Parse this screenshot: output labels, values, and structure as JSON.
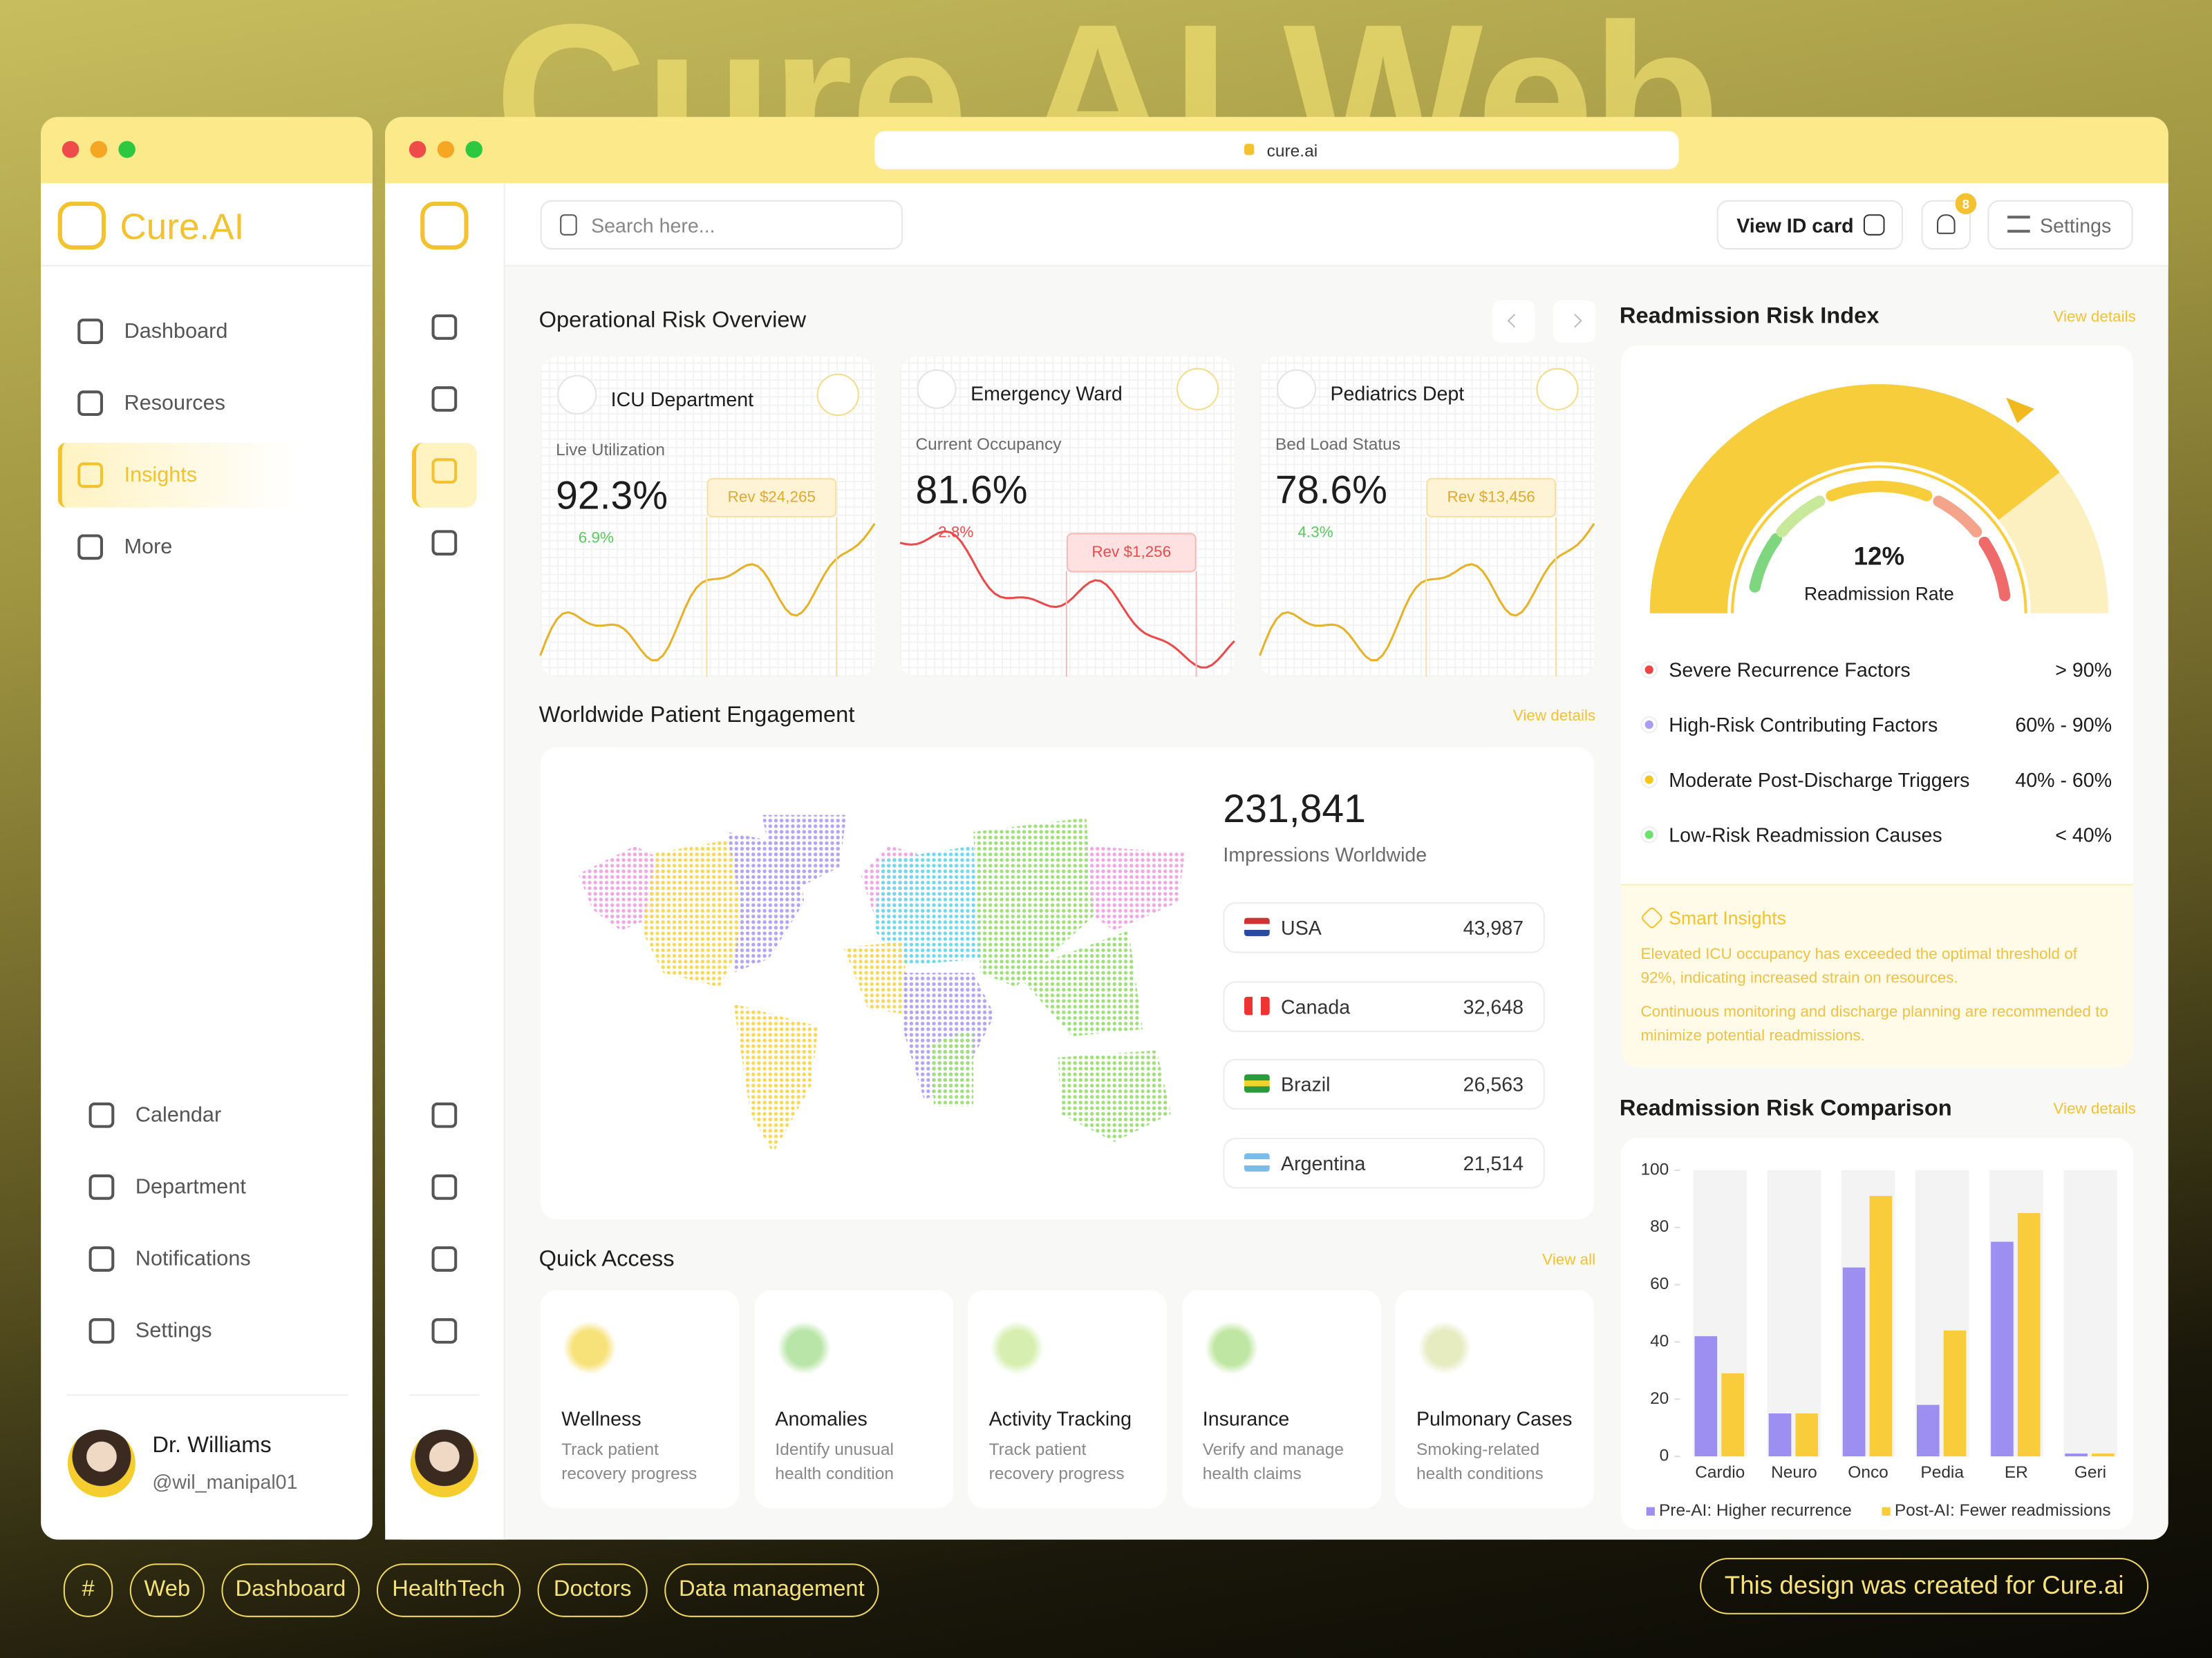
{
  "background_title": "Cure.AI Web",
  "sidebar": {
    "brand": "Cure.AI",
    "nav": [
      "Dashboard",
      "Resources",
      "Insights",
      "More"
    ],
    "active": 2,
    "bottom_nav": [
      "Calendar",
      "Department",
      "Notifications",
      "Settings"
    ],
    "user": {
      "name": "Dr. Williams",
      "handle": "@wil_manipal01"
    }
  },
  "browser": {
    "url": "cure.ai"
  },
  "topbar": {
    "search_placeholder": "Search here...",
    "id_card": "View ID card",
    "notification_count": 8,
    "settings": "Settings"
  },
  "operational_risk": {
    "title": "Operational Risk Overview",
    "cards": [
      {
        "name": "ICU Department",
        "metric_label": "Live Utilization",
        "value": "92.3%",
        "change": "6.9%",
        "change_dir": "up",
        "tooltip": "Rev $24,265"
      },
      {
        "name": "Emergency Ward",
        "metric_label": "Current Occupancy",
        "value": "81.6%",
        "change": "2.8%",
        "change_dir": "down",
        "tooltip": "Rev $1,256"
      },
      {
        "name": "Pediatrics Dept",
        "metric_label": "Bed Load Status",
        "value": "78.6%",
        "change": "4.3%",
        "change_dir": "up",
        "tooltip": "Rev $13,456"
      }
    ]
  },
  "engagement": {
    "title": "Worldwide Patient Engagement",
    "link": "View details",
    "total": "231,841",
    "total_label": "Impressions Worldwide",
    "countries": [
      {
        "name": "USA",
        "value": "43,987"
      },
      {
        "name": "Canada",
        "value": "32,648"
      },
      {
        "name": "Brazil",
        "value": "26,563"
      },
      {
        "name": "Argentina",
        "value": "21,514"
      }
    ]
  },
  "quick_access": {
    "title": "Quick Access",
    "link": "View all",
    "items": [
      {
        "title": "Wellness",
        "desc": "Track patient recovery progress"
      },
      {
        "title": "Anomalies",
        "desc": "Identify unusual health condition"
      },
      {
        "title": "Activity Tracking",
        "desc": "Track patient recovery progress"
      },
      {
        "title": "Insurance",
        "desc": "Verify and manage health claims"
      },
      {
        "title": "Pulmonary Cases",
        "desc": "Smoking-related health conditions"
      }
    ]
  },
  "readmission_index": {
    "title": "Readmission Risk Index",
    "link": "View details",
    "value": "12%",
    "label": "Readmission Rate",
    "factors": [
      {
        "name": "Severe Recurrence Factors",
        "range": "> 90%",
        "color": "#ef4444"
      },
      {
        "name": "High-Risk Contributing Factors",
        "range": "60% - 90%",
        "color": "#a89cf5"
      },
      {
        "name": "Moderate Post-Discharge Triggers",
        "range": "40% - 60%",
        "color": "#f5c518"
      },
      {
        "name": "Low-Risk Readmission Causes",
        "range": "< 40%",
        "color": "#6ee06e"
      }
    ]
  },
  "smart_insights": {
    "title": "Smart Insights",
    "paragraphs": [
      "Elevated ICU occupancy has exceeded the optimal threshold of 92%, indicating increased strain on resources.",
      "Continuous monitoring and discharge planning are recommended to minimize potential readmissions."
    ]
  },
  "comparison": {
    "link": "View details"
  },
  "chart_data": {
    "type": "bar",
    "title": "Readmission Risk Comparison",
    "categories": [
      "Cardio",
      "Neuro",
      "Onco",
      "Pedia",
      "ER",
      "Geri"
    ],
    "series": [
      {
        "name": "Pre-AI: Higher recurrence",
        "color": "#9d8ff2",
        "values": [
          42,
          15,
          66,
          18,
          75,
          1
        ]
      },
      {
        "name": "Post-AI: Fewer readmissions",
        "color": "#f8cc3a",
        "values": [
          29,
          15,
          91,
          44,
          85,
          1
        ]
      }
    ],
    "ylim": [
      0,
      100
    ],
    "yticks": [
      0,
      20,
      40,
      60,
      80,
      100
    ]
  },
  "tags": [
    "#",
    "Web",
    "Dashboard",
    "HealthTech",
    "Doctors",
    "Data management"
  ],
  "footer_note": "This design was created for Cure.ai"
}
